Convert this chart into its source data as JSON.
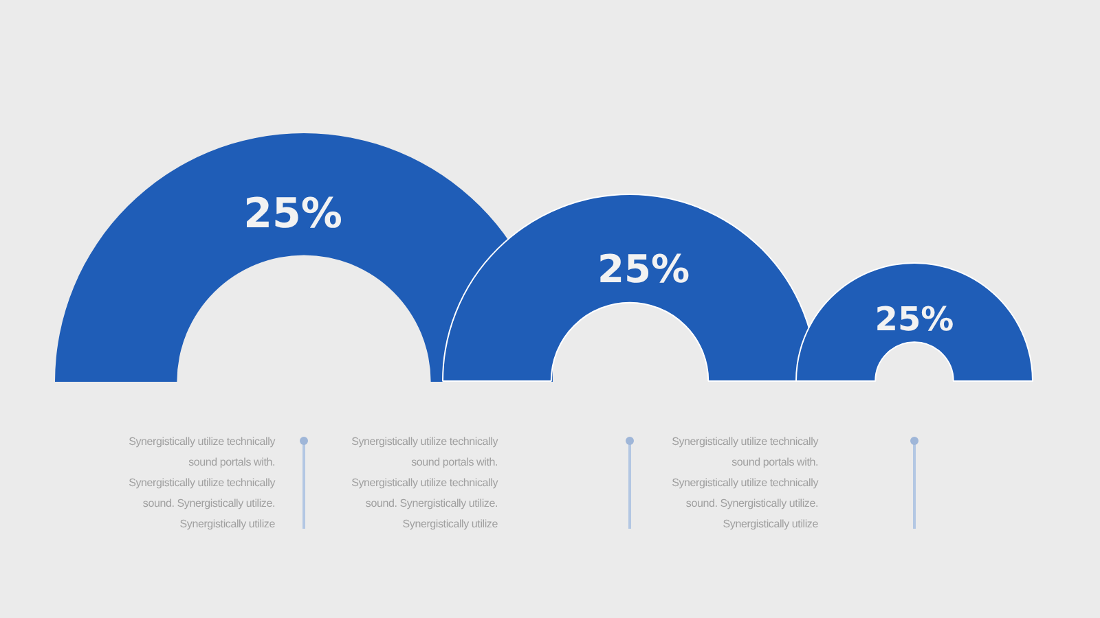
{
  "chart_data": {
    "type": "other",
    "categories": [
      null,
      null,
      null
    ],
    "values": [
      25,
      25,
      25
    ],
    "value_labels": [
      "25%",
      "25%",
      "25%"
    ],
    "color": "#1f5db7",
    "annotations": [
      "Synergistically utilize technically\nsound portals with.\nSynergistically utilize technically\nsound. Synergistically utilize.\nSynergistically utilize",
      "Synergistically utilize technically\nsound portals with.\nSynergistically utilize technically\nsound. Synergistically utilize.\nSynergistically utilize",
      "Synergistically utilize technically\nsound portals with.\nSynergistically utilize technically\nsound. Synergistically utilize.\nSynergistically utilize"
    ]
  }
}
